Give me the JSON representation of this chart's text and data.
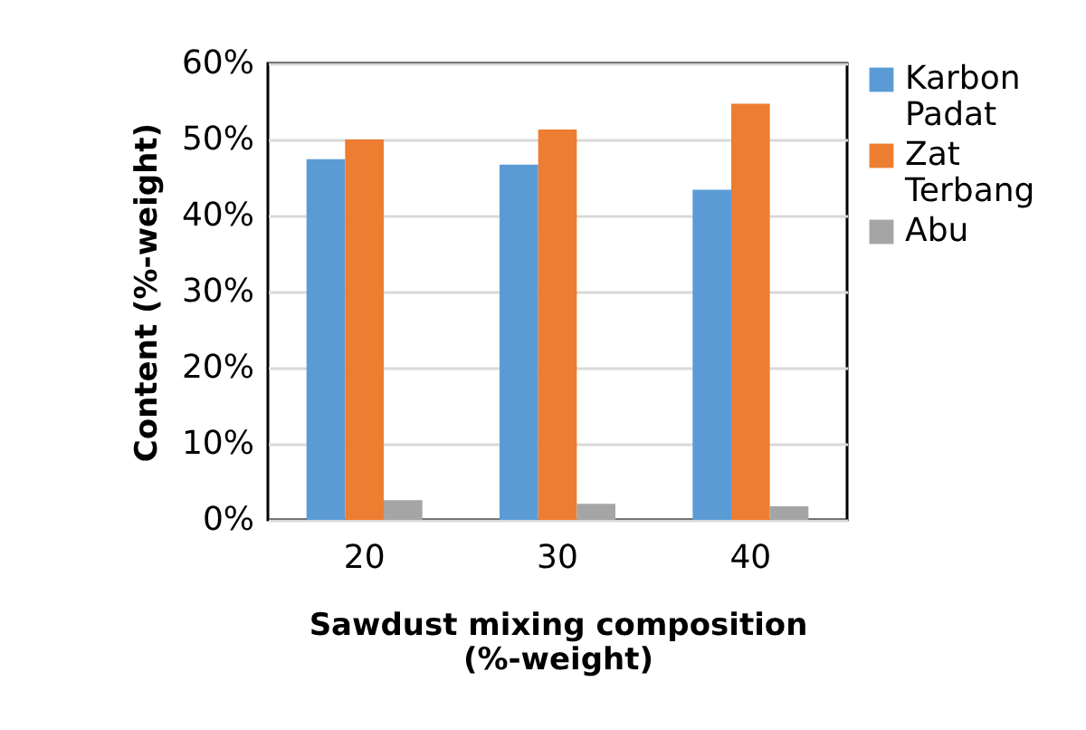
{
  "chart_data": {
    "type": "bar",
    "xlabel": "Sawdust mixing composition (%-weight)",
    "ylabel": "Content (%-weight)",
    "categories": [
      "20",
      "30",
      "40"
    ],
    "series": [
      {
        "name": "Karbon Padat",
        "color": "#5b9bd5",
        "values": [
          47.4,
          46.7,
          43.4
        ]
      },
      {
        "name": "Zat Terbang",
        "color": "#ed7d31",
        "values": [
          50.0,
          51.3,
          54.7
        ]
      },
      {
        "name": "Abu",
        "color": "#a5a5a5",
        "values": [
          2.6,
          2.1,
          1.8
        ]
      }
    ],
    "ylim": [
      0,
      60
    ],
    "yticks": [
      {
        "value": 0,
        "label": "0%"
      },
      {
        "value": 10,
        "label": "10%"
      },
      {
        "value": 20,
        "label": "20%"
      },
      {
        "value": 30,
        "label": "30%"
      },
      {
        "value": 40,
        "label": "40%"
      },
      {
        "value": 50,
        "label": "50%"
      },
      {
        "value": 60,
        "label": "60%"
      }
    ],
    "grid": "y",
    "legend": "right"
  }
}
